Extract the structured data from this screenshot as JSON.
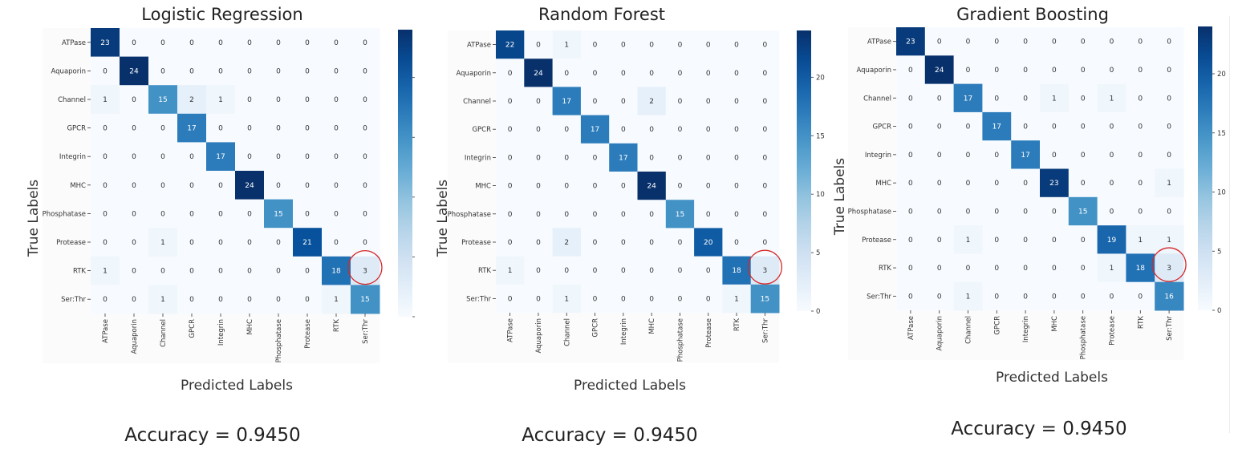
{
  "chart_data": [
    {
      "type": "heatmap",
      "title": "Logistic Regression",
      "xlabel": "Predicted Labels",
      "ylabel": "True Labels",
      "footer": "Accuracy = 0.9450",
      "labels": [
        "ATPase",
        "Aquaporin",
        "Channel",
        "GPCR",
        "Integrin",
        "MHC",
        "Phosphatase",
        "Protease",
        "RTK",
        "Ser:Thr"
      ],
      "matrix": [
        [
          23,
          0,
          0,
          0,
          0,
          0,
          0,
          0,
          0,
          0
        ],
        [
          0,
          24,
          0,
          0,
          0,
          0,
          0,
          0,
          0,
          0
        ],
        [
          1,
          0,
          15,
          2,
          1,
          0,
          0,
          0,
          0,
          0
        ],
        [
          0,
          0,
          0,
          17,
          0,
          0,
          0,
          0,
          0,
          0
        ],
        [
          0,
          0,
          0,
          0,
          17,
          0,
          0,
          0,
          0,
          0
        ],
        [
          0,
          0,
          0,
          0,
          0,
          24,
          0,
          0,
          0,
          0
        ],
        [
          0,
          0,
          0,
          0,
          0,
          0,
          15,
          0,
          0,
          0
        ],
        [
          0,
          0,
          1,
          0,
          0,
          0,
          0,
          21,
          0,
          0
        ],
        [
          1,
          0,
          0,
          0,
          0,
          0,
          0,
          0,
          18,
          3
        ],
        [
          0,
          0,
          1,
          0,
          0,
          0,
          0,
          0,
          1,
          15
        ]
      ],
      "colorbar_ticks": [
        0,
        5,
        10,
        15,
        20
      ],
      "vmax": 24,
      "highlight": {
        "row": 8,
        "col": 9
      }
    },
    {
      "type": "heatmap",
      "title": "Random Forest",
      "xlabel": "Predicted Labels",
      "ylabel": "True Labels",
      "footer": "Accuracy = 0.9450",
      "labels": [
        "ATPase",
        "Aquaporin",
        "Channel",
        "GPCR",
        "Integrin",
        "MHC",
        "Phosphatase",
        "Protease",
        "RTK",
        "Ser:Thr"
      ],
      "matrix": [
        [
          22,
          0,
          1,
          0,
          0,
          0,
          0,
          0,
          0,
          0
        ],
        [
          0,
          24,
          0,
          0,
          0,
          0,
          0,
          0,
          0,
          0
        ],
        [
          0,
          0,
          17,
          0,
          0,
          2,
          0,
          0,
          0,
          0
        ],
        [
          0,
          0,
          0,
          17,
          0,
          0,
          0,
          0,
          0,
          0
        ],
        [
          0,
          0,
          0,
          0,
          17,
          0,
          0,
          0,
          0,
          0
        ],
        [
          0,
          0,
          0,
          0,
          0,
          24,
          0,
          0,
          0,
          0
        ],
        [
          0,
          0,
          0,
          0,
          0,
          0,
          15,
          0,
          0,
          0
        ],
        [
          0,
          0,
          2,
          0,
          0,
          0,
          0,
          20,
          0,
          0
        ],
        [
          1,
          0,
          0,
          0,
          0,
          0,
          0,
          0,
          18,
          3
        ],
        [
          0,
          0,
          1,
          0,
          0,
          0,
          0,
          0,
          1,
          15
        ]
      ],
      "colorbar_ticks": [
        0,
        5,
        10,
        15,
        20
      ],
      "vmax": 24,
      "highlight": {
        "row": 8,
        "col": 9
      }
    },
    {
      "type": "heatmap",
      "title": "Gradient Boosting",
      "xlabel": "Predicted Labels",
      "ylabel": "True Labels",
      "footer": "Accuracy = 0.9450",
      "labels": [
        "ATPase",
        "Aquaporin",
        "Channel",
        "GPCR",
        "Integrin",
        "MHC",
        "Phosphatase",
        "Protease",
        "RTK",
        "Ser:Thr"
      ],
      "matrix": [
        [
          23,
          0,
          0,
          0,
          0,
          0,
          0,
          0,
          0,
          0
        ],
        [
          0,
          24,
          0,
          0,
          0,
          0,
          0,
          0,
          0,
          0
        ],
        [
          0,
          0,
          17,
          0,
          0,
          1,
          0,
          1,
          0,
          0
        ],
        [
          0,
          0,
          0,
          17,
          0,
          0,
          0,
          0,
          0,
          0
        ],
        [
          0,
          0,
          0,
          0,
          17,
          0,
          0,
          0,
          0,
          0
        ],
        [
          0,
          0,
          0,
          0,
          0,
          23,
          0,
          0,
          0,
          1
        ],
        [
          0,
          0,
          0,
          0,
          0,
          0,
          15,
          0,
          0,
          0
        ],
        [
          0,
          0,
          1,
          0,
          0,
          0,
          0,
          19,
          1,
          1
        ],
        [
          0,
          0,
          0,
          0,
          0,
          0,
          0,
          1,
          18,
          3
        ],
        [
          0,
          0,
          1,
          0,
          0,
          0,
          0,
          0,
          0,
          16
        ]
      ],
      "colorbar_ticks": [
        0,
        5,
        10,
        15,
        20
      ],
      "vmax": 24,
      "highlight": {
        "row": 8,
        "col": 9
      }
    }
  ],
  "colors": {
    "cmap_low": "#f7fbff",
    "cmap_high": "#08306b",
    "highlight_circle": "#d62728"
  }
}
